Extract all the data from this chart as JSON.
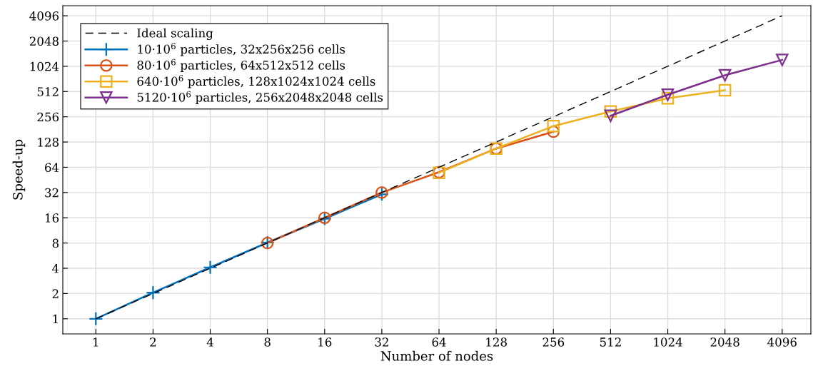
{
  "chart_data": {
    "type": "line",
    "xlabel": "Number of nodes",
    "ylabel": "Speed-up",
    "log": "xy",
    "xlim": [
      0.67,
      5800
    ],
    "ylim": [
      0.66,
      5400
    ],
    "xticks": [
      1,
      2,
      4,
      8,
      16,
      32,
      64,
      128,
      256,
      512,
      1024,
      2048,
      4096
    ],
    "yticks": [
      1,
      2,
      4,
      8,
      16,
      32,
      64,
      128,
      256,
      512,
      1024,
      2048,
      4096
    ],
    "grid": true,
    "legend": "top left",
    "series": [
      {
        "name": "Ideal scaling",
        "color": "#000000",
        "marker": "none",
        "line_style": "dashed",
        "x": [
          1,
          4096
        ],
        "values": [
          1,
          4096
        ]
      },
      {
        "name": "10·10$^{6}$ particles, 32x256x256 cells",
        "color": "#0072bd",
        "marker": "cross",
        "x": [
          1,
          2,
          4,
          8,
          16,
          32
        ],
        "values": [
          1,
          2.05,
          4.1,
          8.1,
          15.6,
          30.5
        ]
      },
      {
        "name": "80·10$^{6}$ particles, 64x512x512 cells",
        "color": "#d95319",
        "marker": "circle",
        "x": [
          8,
          16,
          32,
          64,
          128,
          256
        ],
        "values": [
          8,
          16,
          32,
          56,
          107,
          170
        ]
      },
      {
        "name": "640·10$^{6}$ particles, 128x1024x1024 cells",
        "color": "#edb120",
        "marker": "square",
        "x": [
          64,
          128,
          256,
          512,
          1024,
          2048
        ],
        "values": [
          55,
          107,
          198,
          296,
          425,
          530
        ]
      },
      {
        "name": "5120·10$^{6}$ particles, 256x2048x2048 cells",
        "color": "#7e2f8e",
        "marker": "triangle",
        "x": [
          512,
          1024,
          2048,
          4096
        ],
        "values": [
          263,
          469,
          800,
          1219
        ]
      }
    ]
  }
}
